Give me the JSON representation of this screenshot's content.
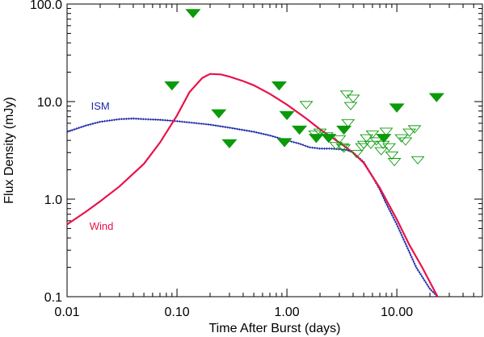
{
  "chart_data": {
    "type": "line",
    "xlabel": "Time After Burst (days)",
    "ylabel": "Flux Density (mJy)",
    "xscale": "log",
    "yscale": "log",
    "xlim": [
      0.01,
      60
    ],
    "ylim": [
      0.1,
      100
    ],
    "xticks": [
      {
        "value": 0.01,
        "label": "0.01"
      },
      {
        "value": 0.1,
        "label": "0.10"
      },
      {
        "value": 1,
        "label": "1.00"
      },
      {
        "value": 10,
        "label": "10.00"
      }
    ],
    "yticks": [
      {
        "value": 0.1,
        "label": "0.1"
      },
      {
        "value": 1,
        "label": "1.0"
      },
      {
        "value": 10,
        "label": "10.0"
      },
      {
        "value": 100,
        "label": "100.0"
      }
    ],
    "grid": false,
    "series": [
      {
        "name": "ISM",
        "kind": "line",
        "style": "dotted-line",
        "color": "#1f2aa8",
        "x": [
          0.01,
          0.015,
          0.02,
          0.03,
          0.04,
          0.05,
          0.07,
          0.1,
          0.15,
          0.2,
          0.3,
          0.5,
          0.7,
          1.0,
          1.3,
          1.6,
          2.0,
          2.5,
          3.0,
          3.5,
          4.0,
          5.0,
          6.0,
          7.0,
          8.0,
          10.0,
          12.0,
          15.0,
          20.0,
          23.5
        ],
        "y": [
          4.9,
          5.7,
          6.2,
          6.6,
          6.7,
          6.6,
          6.5,
          6.3,
          6.0,
          5.8,
          5.4,
          4.9,
          4.5,
          4.0,
          3.7,
          3.4,
          3.3,
          3.3,
          3.25,
          3.2,
          3.0,
          2.4,
          1.7,
          1.25,
          0.9,
          0.55,
          0.35,
          0.2,
          0.12,
          0.1
        ]
      },
      {
        "name": "Wind",
        "kind": "line",
        "color": "#e8134a",
        "x": [
          0.01,
          0.015,
          0.02,
          0.03,
          0.05,
          0.07,
          0.1,
          0.13,
          0.17,
          0.2,
          0.25,
          0.3,
          0.4,
          0.5,
          0.7,
          1.0,
          1.5,
          2.0,
          3.0,
          4.0,
          5.0,
          7.0,
          10.0,
          13.0,
          17.0,
          23.5
        ],
        "y": [
          0.55,
          0.75,
          0.95,
          1.35,
          2.3,
          3.8,
          7.2,
          12.5,
          17.5,
          19.2,
          19.0,
          18.0,
          16.2,
          14.7,
          12.0,
          9.3,
          6.7,
          5.2,
          3.8,
          3.0,
          2.35,
          1.3,
          0.62,
          0.34,
          0.2,
          0.1
        ]
      },
      {
        "kind": "scatter",
        "marker": "filled-triangle-down",
        "color": "#0a9a0a",
        "x": [
          0.09,
          0.14,
          0.24,
          0.3,
          0.85,
          0.95,
          1.0,
          1.3,
          1.85,
          2.4,
          3.3,
          7.6,
          10.0,
          23.0
        ],
        "y": [
          14.5,
          80.0,
          7.5,
          3.7,
          14.5,
          3.8,
          7.2,
          5.1,
          4.2,
          4.2,
          5.1,
          4.2,
          8.6,
          11.0
        ]
      },
      {
        "kind": "scatter",
        "marker": "open-triangle-down",
        "color": "#0a9a0a",
        "x": [
          1.5,
          1.8,
          2.0,
          2.3,
          2.8,
          3.0,
          3.2,
          3.5,
          3.8,
          4.0,
          3.3,
          3.6,
          4.3,
          4.8,
          5.3,
          5.8,
          5.0,
          6.0,
          6.5,
          7.2,
          8.0,
          8.5,
          9.0,
          7.5,
          9.5,
          11.0,
          12.0,
          13.0,
          14.5,
          15.5
        ],
        "y": [
          9.2,
          4.6,
          4.8,
          4.4,
          3.5,
          4.1,
          3.4,
          11.8,
          9.0,
          10.7,
          3.3,
          6.0,
          2.9,
          3.4,
          4.2,
          3.6,
          3.6,
          4.6,
          3.9,
          3.1,
          4.9,
          3.4,
          2.8,
          3.6,
          2.4,
          4.2,
          3.9,
          4.8,
          5.2,
          2.5
        ]
      }
    ],
    "annotations": [
      {
        "text": "ISM",
        "x": 0.0165,
        "y": 8.3,
        "color": "#1f2aa8"
      },
      {
        "text": "Wind",
        "x": 0.016,
        "y": 0.485,
        "color": "#e8134a"
      }
    ]
  }
}
